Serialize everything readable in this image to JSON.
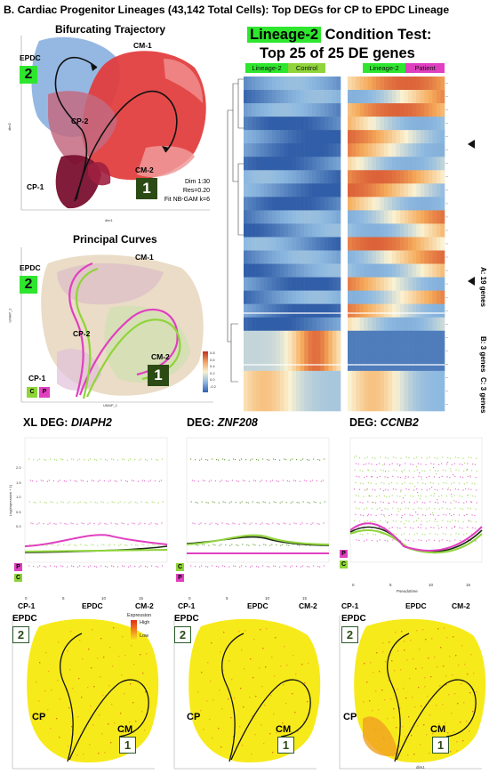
{
  "figure_title": "B. Cardiac Progenitor Lineages (43,142 Total Cells): Top DEGs for CP to EPDC Lineage",
  "trajectory_panel": {
    "title": "Bifurcating Trajectory",
    "labels": {
      "epdc": "EPDC",
      "cm1": "CM-1",
      "cp2": "CP-2",
      "cm2": "CM-2",
      "cp1": "CP-1"
    },
    "num_2": "2",
    "num_1": "1",
    "params": [
      "Dim 1:30",
      "Res=0.20",
      "Fit NB-GAM k=6"
    ],
    "ylabel": "dim2",
    "xlabel": "dim1",
    "colors": {
      "epdc": "#8fb4e0",
      "cm": "#e23a3a",
      "cp": "#7a1030",
      "mix": "#c46a80"
    }
  },
  "curves_panel": {
    "title": "Principal Curves",
    "labels": {
      "epdc": "EPDC",
      "cm1": "CM-1",
      "cp2": "CP-2",
      "cm2": "CM-2",
      "cp1": "CP-1"
    },
    "num_2": "2",
    "num_1": "1",
    "chip_c": "C",
    "chip_p": "P",
    "ylabel": "UMAP_2",
    "xlabel": "UMAP_1",
    "legend_ticks": [
      "0.8",
      "0.6",
      "0.4",
      "0.2",
      "0.0",
      "-0.2"
    ],
    "colors": {
      "control": "#8fd43a",
      "patient": "#e040c0"
    }
  },
  "heatmap_panel": {
    "title_badge": "Lineage-2",
    "title_rest": " Condition Test:",
    "subtitle": "Top 25 of 25 DE genes",
    "col_groups": [
      {
        "lineage": "Lineage-2",
        "condition": "Control",
        "condition_color": "#8fd43a"
      },
      {
        "lineage": "Lineage-2",
        "condition": "Patient",
        "condition_color": "#e040c0"
      }
    ],
    "cluster_labels": [
      "A: 19 genes",
      "B: 3 genes",
      "C: 3 genes"
    ],
    "legend_ticks": [
      "0.8",
      "0.6",
      "0.4",
      "0.2",
      "0.0",
      "-0.2"
    ]
  },
  "deg_panels": [
    {
      "title_prefix": "XL DEG: ",
      "gene": "DIAPH2",
      "chips": [
        {
          "text": "P",
          "color": "#e040c0"
        },
        {
          "text": "C",
          "color": "#8fd43a"
        }
      ],
      "axis_labels": [
        "CP-1",
        "EPDC",
        "CM-2"
      ],
      "ylabel": "Log(expression + 1)",
      "yticks": [
        "2.0",
        "1.5",
        "1.0",
        "0.5",
        "0.0"
      ],
      "xticks": [
        "0",
        "5",
        "10",
        "15"
      ],
      "xlabel": ""
    },
    {
      "title_prefix": "DEG: ",
      "gene": "ZNF208",
      "chips": [
        {
          "text": "C",
          "color": "#8fd43a"
        },
        {
          "text": "P",
          "color": "#e040c0"
        }
      ],
      "axis_labels": [
        "CP-1",
        "EPDC",
        "CM-2"
      ],
      "ylabel": "",
      "yticks": [],
      "xticks": [
        "0",
        "5",
        "10",
        "15"
      ],
      "xlabel": ""
    },
    {
      "title_prefix": "DEG: ",
      "gene": "CCNB2",
      "chips": [
        {
          "text": "P",
          "color": "#e040c0"
        },
        {
          "text": "C",
          "color": "#8fd43a"
        }
      ],
      "axis_labels": [
        "CP-1",
        "EPDC",
        "CM-2"
      ],
      "ylabel": "",
      "yticks": [],
      "xticks": [
        "0",
        "5",
        "10",
        "15"
      ],
      "xlabel": "Pseudotime"
    }
  ],
  "expression_panels": [
    {
      "epdc": "EPDC",
      "num_2": "2",
      "cp": "CP",
      "cm": "CM",
      "num_1": "1",
      "legend_title": "Expression",
      "legend_high": "High",
      "legend_low": "Low",
      "xlabel": ""
    },
    {
      "epdc": "EPDC",
      "num_2": "2",
      "cp": "CP",
      "cm": "CM",
      "num_1": "1",
      "legend_title": "",
      "legend_high": "",
      "legend_low": "",
      "xlabel": ""
    },
    {
      "epdc": "EPDC",
      "num_2": "2",
      "cp": "CP",
      "cm": "CM",
      "num_1": "1",
      "legend_title": "",
      "legend_high": "",
      "legend_low": "",
      "xlabel": "dim1"
    }
  ]
}
